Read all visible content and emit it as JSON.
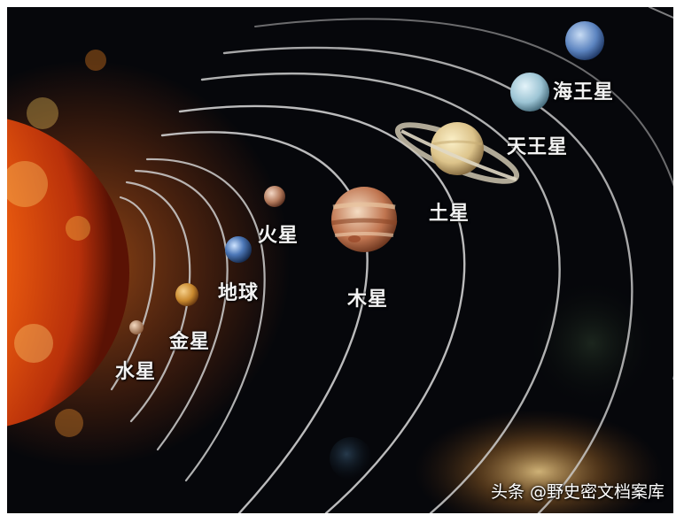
{
  "planets": {
    "mercury": "水星",
    "venus": "金星",
    "earth": "地球",
    "mars": "火星",
    "jupiter": "木星",
    "saturn": "土星",
    "uranus": "天王星",
    "neptune": "海王星"
  },
  "watermark": "头条 @野史密文档案库",
  "colors": {
    "space": "#06070b",
    "sun": "#e24a0e",
    "orbit": "#cfcfcf",
    "label": "#f3f3f3"
  }
}
